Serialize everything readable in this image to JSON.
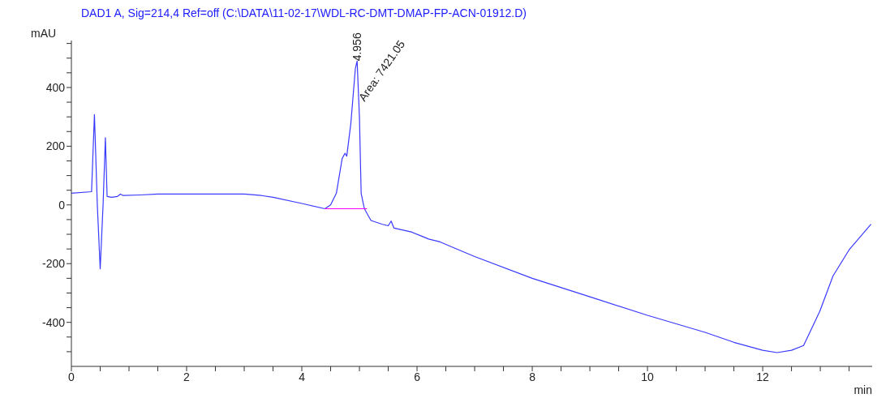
{
  "chart_data": {
    "type": "line",
    "title": "DAD1 A, Sig=214,4 Ref=off (C:\\DATA\\11-02-17\\WDL-RC-DMT-DMAP-FP-ACN-01912.D)",
    "xlabel": "min",
    "ylabel": "mAU",
    "xlim": [
      0,
      13.9
    ],
    "xticks": [
      0,
      {
        "value": 0.5,
        "label": null
      },
      {
        "value": 1,
        "label": null
      },
      {
        "value": 1.5,
        "label": null
      },
      2,
      {
        "value": 2.5,
        "label": null
      },
      {
        "value": 3,
        "label": null
      },
      {
        "value": 3.5,
        "label": null
      },
      4,
      {
        "value": 4.5,
        "label": null
      },
      {
        "value": 5,
        "label": null
      },
      {
        "value": 5.5,
        "label": null
      },
      6,
      {
        "value": 6.5,
        "label": null
      },
      {
        "value": 7,
        "label": null
      },
      {
        "value": 7.5,
        "label": null
      },
      8,
      {
        "value": 8.5,
        "label": null
      },
      {
        "value": 9,
        "label": null
      },
      {
        "value": 9.5,
        "label": null
      },
      10,
      {
        "value": 10.5,
        "label": null
      },
      {
        "value": 11,
        "label": null
      },
      {
        "value": 11.5,
        "label": null
      },
      12,
      {
        "value": 12.5,
        "label": null
      },
      {
        "value": 13,
        "label": null
      },
      {
        "value": 13.5,
        "label": null
      }
    ],
    "ylim": [
      -550,
      560
    ],
    "yticks": [
      {
        "value": -500,
        "label": null
      },
      {
        "value": -450,
        "label": null
      },
      -400,
      {
        "value": -350,
        "label": null
      },
      {
        "value": -300,
        "label": null
      },
      {
        "value": -250,
        "label": null
      },
      -200,
      {
        "value": -150,
        "label": null
      },
      {
        "value": -100,
        "label": null
      },
      {
        "value": -50,
        "label": null
      },
      0,
      {
        "value": 50,
        "label": null
      },
      {
        "value": 100,
        "label": null
      },
      {
        "value": 150,
        "label": null
      },
      200,
      {
        "value": 250,
        "label": null
      },
      {
        "value": 300,
        "label": null
      },
      {
        "value": 350,
        "label": null
      },
      400,
      {
        "value": 450,
        "label": null
      },
      {
        "value": 500,
        "label": null
      },
      {
        "value": 550,
        "label": null
      }
    ],
    "grid": false,
    "legend": false,
    "marker": "none",
    "line_style": "solid",
    "series": [
      {
        "color": "#3a3aff",
        "x": [
          0,
          0.35,
          0.4,
          0.45,
          0.5,
          0.55,
          0.59,
          0.62,
          0.7,
          0.8,
          0.85,
          0.9,
          1.2,
          1.5,
          2,
          3,
          3.3,
          3.5,
          4,
          4.4,
          4.5,
          4.6,
          4.7,
          4.75,
          4.78,
          4.85,
          4.93,
          4.96,
          5,
          5.03,
          5.08,
          5.1,
          5.2,
          5.4,
          5.5,
          5.55,
          5.6,
          5.9,
          6.1,
          6.2,
          6.4,
          7,
          8,
          9,
          10,
          11,
          11.5,
          12,
          12.25,
          12.5,
          12.71,
          12.99,
          13.22,
          13.5,
          13.88
        ],
        "values": [
          40,
          45,
          308,
          0,
          -218,
          0,
          229,
          29,
          26,
          29,
          37,
          32,
          34,
          37,
          37,
          37,
          32,
          26,
          5,
          -13,
          0,
          40,
          158,
          176,
          166,
          276,
          466,
          490,
          300,
          39,
          -8,
          -18,
          -53,
          -66,
          -71,
          -55,
          -79,
          -92,
          -108,
          -116,
          -126,
          -176,
          -250,
          -313,
          -376,
          -434,
          -468,
          -495,
          -503,
          -495,
          -479,
          -363,
          -242,
          -153,
          -66
        ]
      },
      {
        "color": "#ff00ff",
        "x": [
          4.4,
          5.13
        ],
        "values": [
          -13,
          -13
        ]
      }
    ],
    "annotations": [
      {
        "text": "4.956",
        "x": 4.956,
        "y": 490
      },
      {
        "text": "Area: 7421.05",
        "x": 5.03,
        "y": 350
      }
    ]
  }
}
